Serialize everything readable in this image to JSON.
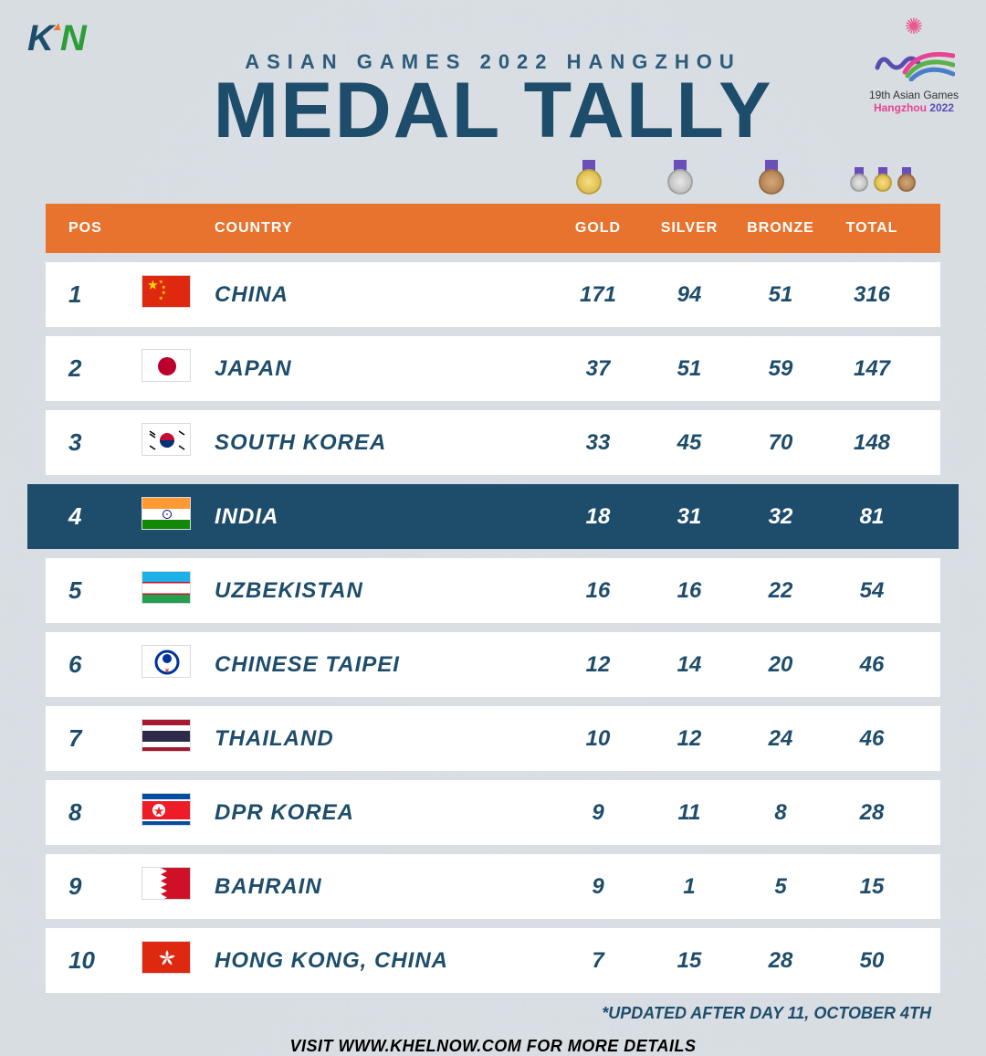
{
  "brand": {
    "k": "K",
    "n": "N"
  },
  "event_logo": {
    "line1": "19th Asian Games",
    "city": "Hangzhou",
    "year": "2022"
  },
  "header": {
    "subtitle": "ASIAN GAMES 2022 HANGZHOU",
    "title": "MEDAL TALLY"
  },
  "columns": {
    "pos": "POS",
    "country": "COUNTRY",
    "gold": "GOLD",
    "silver": "SILVER",
    "bronze": "BRONZE",
    "total": "TOTAL"
  },
  "styling": {
    "header_bg": "#e8732e",
    "row_bg": "#ffffff",
    "highlight_bg": "#1e4d6b",
    "text_color": "#1e4d6b",
    "highlight_text": "#ffffff",
    "title_fontsize": 86,
    "subtitle_fontsize": 22,
    "row_fontsize": 24,
    "medal_gold": "#d4af37",
    "medal_silver": "#b0b0b0",
    "medal_bronze": "#a67345"
  },
  "rows": [
    {
      "pos": "1",
      "country": "CHINA",
      "flag": "china",
      "gold": "171",
      "silver": "94",
      "bronze": "51",
      "total": "316",
      "highlight": false
    },
    {
      "pos": "2",
      "country": "JAPAN",
      "flag": "japan",
      "gold": "37",
      "silver": "51",
      "bronze": "59",
      "total": "147",
      "highlight": false
    },
    {
      "pos": "3",
      "country": "SOUTH KOREA",
      "flag": "skorea",
      "gold": "33",
      "silver": "45",
      "bronze": "70",
      "total": "148",
      "highlight": false
    },
    {
      "pos": "4",
      "country": "INDIA",
      "flag": "india",
      "gold": "18",
      "silver": "31",
      "bronze": "32",
      "total": "81",
      "highlight": true
    },
    {
      "pos": "5",
      "country": "UZBEKISTAN",
      "flag": "uzbek",
      "gold": "16",
      "silver": "16",
      "bronze": "22",
      "total": "54",
      "highlight": false
    },
    {
      "pos": "6",
      "country": "CHINESE TAIPEI",
      "flag": "taipei",
      "gold": "12",
      "silver": "14",
      "bronze": "20",
      "total": "46",
      "highlight": false
    },
    {
      "pos": "7",
      "country": "THAILAND",
      "flag": "thailand",
      "gold": "10",
      "silver": "12",
      "bronze": "24",
      "total": "46",
      "highlight": false
    },
    {
      "pos": "8",
      "country": "DPR KOREA",
      "flag": "dprk",
      "gold": "9",
      "silver": "11",
      "bronze": "8",
      "total": "28",
      "highlight": false
    },
    {
      "pos": "9",
      "country": "BAHRAIN",
      "flag": "bahrain",
      "gold": "9",
      "silver": "1",
      "bronze": "5",
      "total": "15",
      "highlight": false
    },
    {
      "pos": "10",
      "country": "HONG KONG, CHINA",
      "flag": "hk",
      "gold": "7",
      "silver": "15",
      "bronze": "28",
      "total": "50",
      "highlight": false
    }
  ],
  "update_note": "*UPDATED AFTER DAY 11, OCTOBER 4TH",
  "footer": "VISIT WWW.KHELNOW.COM FOR MORE DETAILS"
}
